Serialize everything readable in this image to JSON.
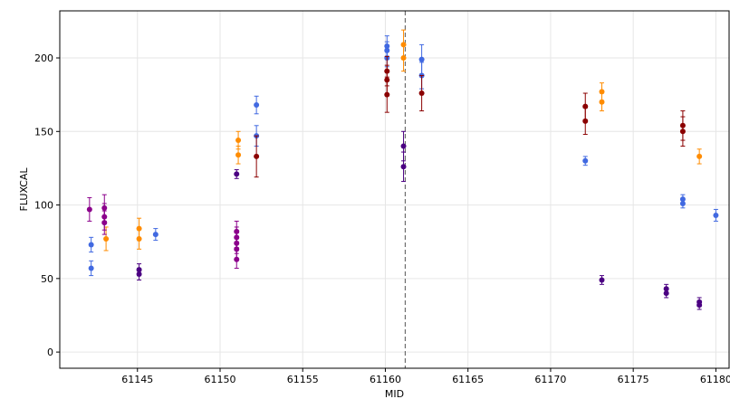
{
  "chart_data": {
    "type": "scatter",
    "title": "",
    "xlabel": "MID",
    "ylabel": "FLUXCAL",
    "xlim": [
      61140.3,
      61180.8
    ],
    "ylim": [
      -11,
      232
    ],
    "xticks": [
      61145,
      61150,
      61155,
      61160,
      61165,
      61170,
      61175,
      61180
    ],
    "yticks": [
      0,
      50,
      100,
      150,
      200
    ],
    "grid": true,
    "vline": {
      "x": 61161.2,
      "style": "dashed",
      "color": "#555555"
    },
    "series": [
      {
        "color": "#4169e1",
        "points": [
          {
            "x": 61142.2,
            "y": 73,
            "err": 5
          },
          {
            "x": 61142.2,
            "y": 57,
            "err": 5
          },
          {
            "x": 61146.1,
            "y": 80,
            "err": 4
          },
          {
            "x": 61152.2,
            "y": 168,
            "err": 6
          },
          {
            "x": 61152.2,
            "y": 147,
            "err": 7
          },
          {
            "x": 61160.1,
            "y": 208,
            "err": 7
          },
          {
            "x": 61160.1,
            "y": 205,
            "err": 6
          },
          {
            "x": 61160.1,
            "y": 200,
            "err": 6
          },
          {
            "x": 61162.2,
            "y": 199,
            "err": 10
          },
          {
            "x": 61162.2,
            "y": 188,
            "err": 9
          },
          {
            "x": 61172.1,
            "y": 130,
            "err": 3
          },
          {
            "x": 61178.0,
            "y": 104,
            "err": 3
          },
          {
            "x": 61178.0,
            "y": 101,
            "err": 3
          },
          {
            "x": 61180.0,
            "y": 93,
            "err": 4
          }
        ]
      },
      {
        "color": "#ff8c00",
        "points": [
          {
            "x": 61143.1,
            "y": 77,
            "err": 8
          },
          {
            "x": 61145.1,
            "y": 84,
            "err": 7
          },
          {
            "x": 61145.1,
            "y": 77,
            "err": 7
          },
          {
            "x": 61151.1,
            "y": 144,
            "err": 6
          },
          {
            "x": 61151.1,
            "y": 134,
            "err": 6
          },
          {
            "x": 61161.1,
            "y": 209,
            "err": 10
          },
          {
            "x": 61161.1,
            "y": 200,
            "err": 9
          },
          {
            "x": 61173.1,
            "y": 177,
            "err": 6
          },
          {
            "x": 61173.1,
            "y": 170,
            "err": 6
          },
          {
            "x": 61179.0,
            "y": 133,
            "err": 5
          }
        ]
      },
      {
        "color": "#8b0000",
        "points": [
          {
            "x": 61152.2,
            "y": 133,
            "err": 14
          },
          {
            "x": 61160.1,
            "y": 191,
            "err": 10
          },
          {
            "x": 61160.1,
            "y": 185,
            "err": 10
          },
          {
            "x": 61160.1,
            "y": 175,
            "err": 12
          },
          {
            "x": 61162.2,
            "y": 176,
            "err": 12
          },
          {
            "x": 61172.1,
            "y": 167,
            "err": 9
          },
          {
            "x": 61172.1,
            "y": 157,
            "err": 9
          },
          {
            "x": 61178.0,
            "y": 154,
            "err": 10
          },
          {
            "x": 61178.0,
            "y": 150,
            "err": 10
          }
        ]
      },
      {
        "color": "#8b008b",
        "points": [
          {
            "x": 61142.1,
            "y": 97,
            "err": 8
          },
          {
            "x": 61143.0,
            "y": 98,
            "err": 9
          },
          {
            "x": 61143.0,
            "y": 92,
            "err": 9
          },
          {
            "x": 61143.0,
            "y": 88,
            "err": 8
          },
          {
            "x": 61151.0,
            "y": 82,
            "err": 7
          },
          {
            "x": 61151.0,
            "y": 78,
            "err": 7
          },
          {
            "x": 61151.0,
            "y": 74,
            "err": 7
          },
          {
            "x": 61151.0,
            "y": 70,
            "err": 7
          },
          {
            "x": 61151.0,
            "y": 63,
            "err": 6
          }
        ]
      },
      {
        "color": "#4b0082",
        "points": [
          {
            "x": 61145.1,
            "y": 56,
            "err": 4
          },
          {
            "x": 61145.1,
            "y": 53,
            "err": 4
          },
          {
            "x": 61151.0,
            "y": 121,
            "err": 3
          },
          {
            "x": 61161.1,
            "y": 140,
            "err": 10
          },
          {
            "x": 61161.1,
            "y": 126,
            "err": 10
          },
          {
            "x": 61173.1,
            "y": 49,
            "err": 3
          },
          {
            "x": 61177.0,
            "y": 43,
            "err": 3
          },
          {
            "x": 61177.0,
            "y": 40,
            "err": 3
          },
          {
            "x": 61179.0,
            "y": 34,
            "err": 3
          },
          {
            "x": 61179.0,
            "y": 32,
            "err": 3
          }
        ]
      }
    ]
  }
}
